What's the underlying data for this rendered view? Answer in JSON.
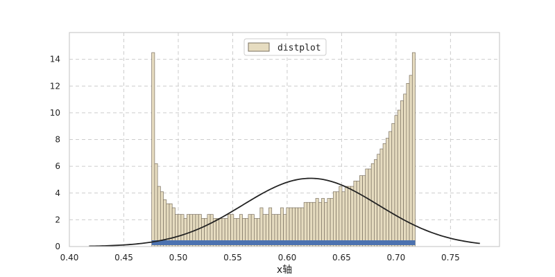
{
  "chart_data": {
    "type": "bar",
    "title": "",
    "xlabel": "x轴",
    "ylabel": "",
    "xlim": [
      0.4,
      0.795
    ],
    "ylim": [
      0,
      16
    ],
    "grid": true,
    "legend": {
      "label": "distplot",
      "placement": "top-center"
    },
    "x_ticks": [
      "0.40",
      "0.45",
      "0.50",
      "0.55",
      "0.60",
      "0.65",
      "0.70",
      "0.75"
    ],
    "x_tick_values": [
      0.4,
      0.45,
      0.5,
      0.55,
      0.6,
      0.65,
      0.7,
      0.75
    ],
    "y_ticks": [
      "0",
      "2",
      "4",
      "6",
      "8",
      "10",
      "12",
      "14"
    ],
    "y_tick_values": [
      0,
      2,
      4,
      6,
      8,
      10,
      12,
      14
    ],
    "histogram": {
      "start": 0.4756,
      "end": 0.7176,
      "counts": [
        14.5,
        6.2,
        4.5,
        4.1,
        3.5,
        3.2,
        3.2,
        2.9,
        2.4,
        2.4,
        2.4,
        2.1,
        2.4,
        2.4,
        2.4,
        2.4,
        2.4,
        2.1,
        2.1,
        2.4,
        2.4,
        2.1,
        2.1,
        2.1,
        2.1,
        2.1,
        2.4,
        2.4,
        2.1,
        2.1,
        2.4,
        2.1,
        2.1,
        2.4,
        2.4,
        2.1,
        2.1,
        2.9,
        2.4,
        2.4,
        2.9,
        2.4,
        2.4,
        2.4,
        2.9,
        2.4,
        2.9,
        2.9,
        2.9,
        2.9,
        2.9,
        2.9,
        3.3,
        3.3,
        3.3,
        3.3,
        3.6,
        3.3,
        3.6,
        3.3,
        3.6,
        3.6,
        4.1,
        4.1,
        4.5,
        4.1,
        4.5,
        4.5,
        4.5,
        4.9,
        4.9,
        5.3,
        5.3,
        5.8,
        5.8,
        6.2,
        6.5,
        6.9,
        7.3,
        7.7,
        8.1,
        8.6,
        9.2,
        9.8,
        10.2,
        10.9,
        11.4,
        12.2,
        12.8,
        14.5
      ],
      "color": "#e6dcc0",
      "edge_color": "#7a7060"
    },
    "rug": {
      "start": 0.4756,
      "end": 0.7176,
      "color": "#4c72b0"
    },
    "fit_curve": {
      "mean": 0.6215,
      "peak": 5.1,
      "sigma": 0.0625,
      "x_min": 0.418,
      "x_max": 0.777,
      "color": "#222222"
    }
  }
}
